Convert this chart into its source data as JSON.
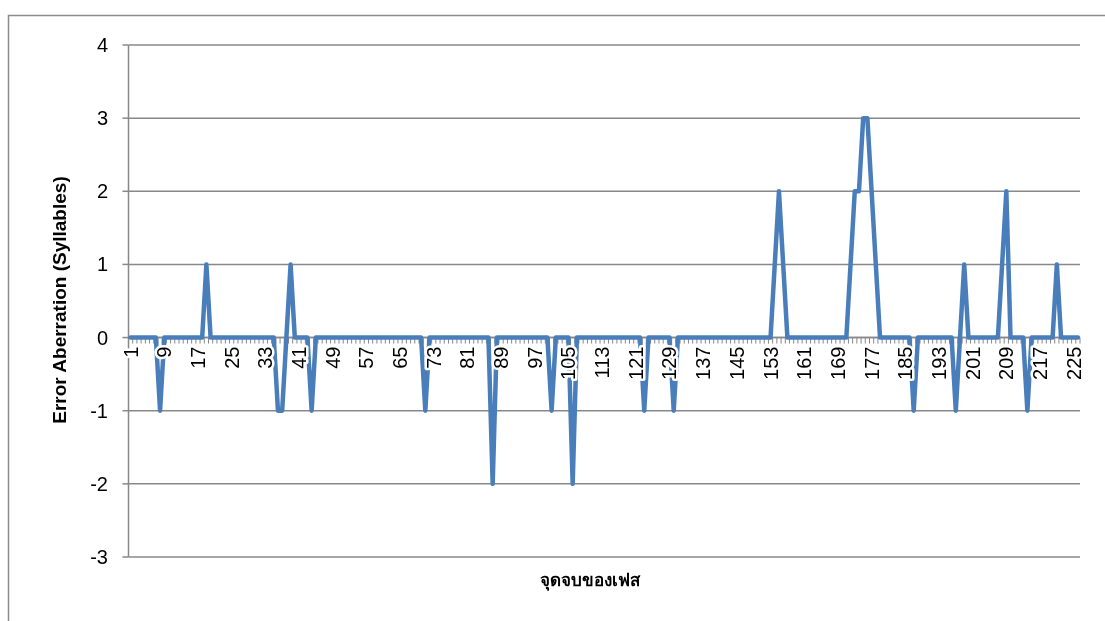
{
  "chart_data": {
    "type": "line",
    "xlabel": "จุดจบของเฟส",
    "ylabel": "Error Aberration (Syllables)",
    "categories": [
      "1",
      null,
      null,
      null,
      null,
      null,
      null,
      null,
      "9",
      null,
      null,
      null,
      null,
      null,
      null,
      null,
      "17",
      null,
      null,
      null,
      null,
      null,
      null,
      null,
      "25",
      null,
      null,
      null,
      null,
      null,
      null,
      null,
      "33",
      null,
      null,
      null,
      null,
      null,
      null,
      null,
      "41",
      null,
      null,
      null,
      null,
      null,
      null,
      null,
      "49",
      null,
      null,
      null,
      null,
      null,
      null,
      null,
      "57",
      null,
      null,
      null,
      null,
      null,
      null,
      null,
      "65",
      null,
      null,
      null,
      null,
      null,
      null,
      null,
      "73",
      null,
      null,
      null,
      null,
      null,
      null,
      null,
      "81",
      null,
      null,
      null,
      null,
      null,
      null,
      null,
      "89",
      null,
      null,
      null,
      null,
      null,
      null,
      null,
      "97",
      null,
      null,
      null,
      null,
      null,
      null,
      null,
      "105",
      null,
      null,
      null,
      null,
      null,
      null,
      null,
      "113",
      null,
      null,
      null,
      null,
      null,
      null,
      null,
      "121",
      null,
      null,
      null,
      null,
      null,
      null,
      null,
      "129",
      null,
      null,
      null,
      null,
      null,
      null,
      null,
      "137",
      null,
      null,
      null,
      null,
      null,
      null,
      null,
      "145",
      null,
      null,
      null,
      null,
      null,
      null,
      null,
      "153",
      null,
      null,
      null,
      null,
      null,
      null,
      null,
      "161",
      null,
      null,
      null,
      null,
      null,
      null,
      null,
      "169",
      null,
      null,
      null,
      null,
      null,
      null,
      null,
      "177",
      null,
      null,
      null,
      null,
      null,
      null,
      null,
      "185",
      null,
      null,
      null,
      null,
      null,
      null,
      null,
      "193",
      null,
      null,
      null,
      null,
      null,
      null,
      null,
      "201",
      null,
      null,
      null,
      null,
      null,
      null,
      null,
      "209",
      null,
      null,
      null,
      null,
      null,
      null,
      null,
      "217",
      null,
      null,
      null,
      null,
      null,
      null,
      null,
      "225",
      null
    ],
    "series": [
      {
        "color": "#4a7ebb",
        "values": [
          0,
          0,
          0,
          0,
          0,
          0,
          0,
          -1,
          0,
          0,
          0,
          0,
          0,
          0,
          0,
          0,
          0,
          0,
          1,
          0,
          0,
          0,
          0,
          0,
          0,
          0,
          0,
          0,
          0,
          0,
          0,
          0,
          0,
          0,
          0,
          -1,
          -1,
          0,
          1,
          0,
          0,
          0,
          0,
          -1,
          0,
          0,
          0,
          0,
          0,
          0,
          0,
          0,
          0,
          0,
          0,
          0,
          0,
          0,
          0,
          0,
          0,
          0,
          0,
          0,
          0,
          0,
          0,
          0,
          0,
          0,
          -1,
          0,
          0,
          0,
          0,
          0,
          0,
          0,
          0,
          0,
          0,
          0,
          0,
          0,
          0,
          0,
          -2,
          0,
          0,
          0,
          0,
          0,
          0,
          0,
          0,
          0,
          0,
          0,
          0,
          0,
          -1,
          0,
          0,
          0,
          0,
          -2,
          0,
          0,
          0,
          0,
          0,
          0,
          0,
          0,
          0,
          0,
          0,
          0,
          0,
          0,
          0,
          0,
          -1,
          0,
          0,
          0,
          0,
          0,
          0,
          -1,
          0,
          0,
          0,
          0,
          0,
          0,
          0,
          0,
          0,
          0,
          0,
          0,
          0,
          0,
          0,
          0,
          0,
          0,
          0,
          0,
          0,
          0,
          0,
          1,
          2,
          1,
          0,
          0,
          0,
          0,
          0,
          0,
          0,
          0,
          0,
          0,
          0,
          0,
          0,
          0,
          0,
          1,
          2,
          2,
          3,
          3,
          2,
          1,
          0,
          0,
          0,
          0,
          0,
          0,
          0,
          0,
          -1,
          0,
          0,
          0,
          0,
          0,
          0,
          0,
          0,
          0,
          -1,
          0,
          1,
          0,
          0,
          0,
          0,
          0,
          0,
          0,
          0,
          1,
          2,
          0,
          0,
          0,
          0,
          -1,
          0,
          0,
          0,
          0,
          0,
          0,
          1,
          0,
          0,
          0,
          0,
          0
        ]
      }
    ],
    "ylim": [
      -3,
      4
    ],
    "yticks": [
      -3,
      -2,
      -1,
      0,
      1,
      2,
      3,
      4
    ],
    "grid": "y"
  }
}
